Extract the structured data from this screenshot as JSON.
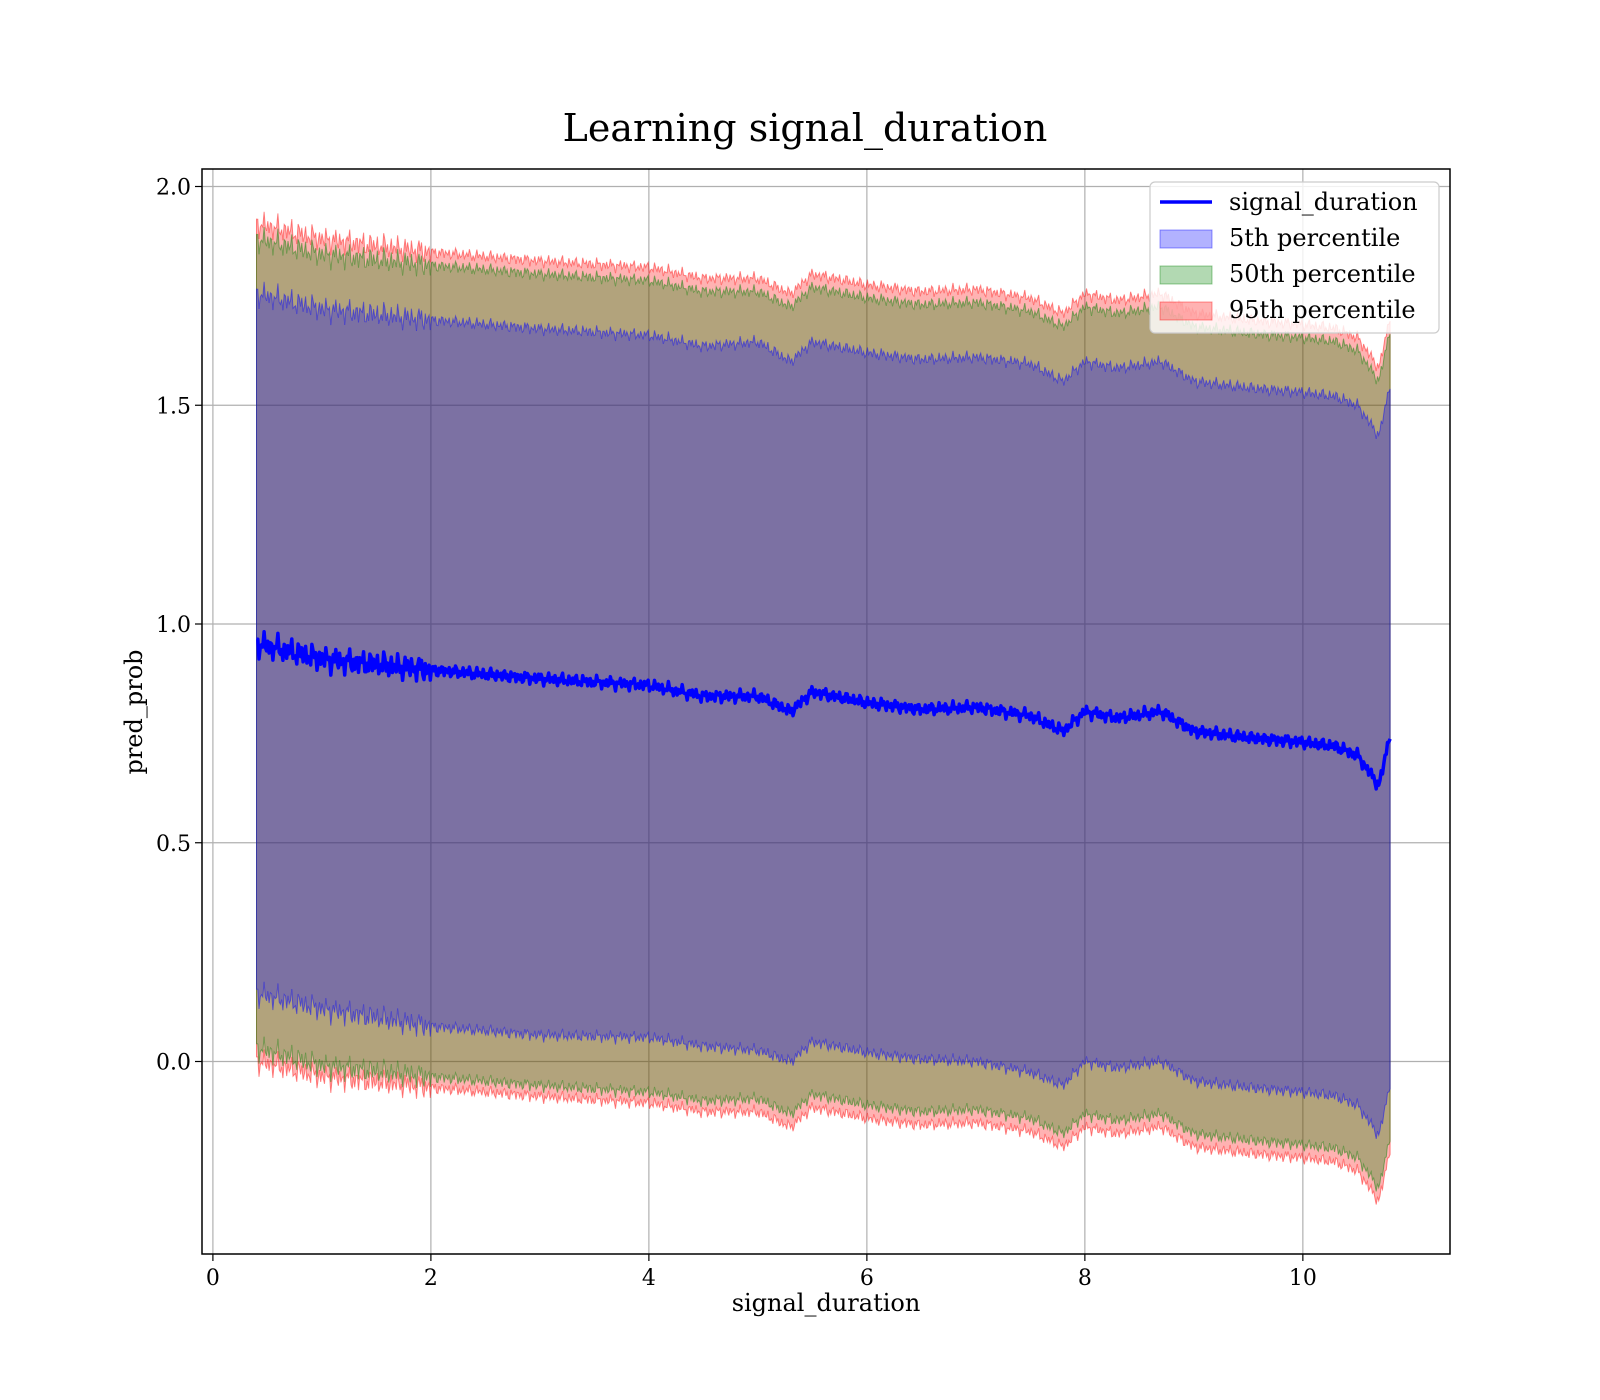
{
  "chart_data": {
    "type": "area",
    "title": "Learning signal_duration",
    "xlabel": "signal_duration",
    "ylabel": "pred_prob",
    "xlim": [
      -0.1,
      11.35
    ],
    "ylim": [
      -0.44,
      2.04
    ],
    "xticks": [
      0,
      2,
      4,
      6,
      8,
      10
    ],
    "yticks": [
      0.0,
      0.5,
      1.0,
      1.5,
      2.0
    ],
    "xtick_labels": [
      "0",
      "2",
      "4",
      "6",
      "8",
      "10"
    ],
    "ytick_labels": [
      "0.0",
      "0.5",
      "1.0",
      "1.5",
      "2.0"
    ],
    "grid": true,
    "legend_position": "top-right",
    "legend": [
      {
        "label": "signal_duration",
        "kind": "line",
        "color": "#0000ff"
      },
      {
        "label": "5th percentile",
        "kind": "patch",
        "color": "#0000ff"
      },
      {
        "label": "50th percentile",
        "kind": "patch",
        "color": "#008000"
      },
      {
        "label": "95th percentile",
        "kind": "patch",
        "color": "#ff0000"
      }
    ],
    "x": [
      0.4,
      1.0,
      2.0,
      3.0,
      4.0,
      4.5,
      5.0,
      5.3,
      5.5,
      6.0,
      6.5,
      7.0,
      7.5,
      7.8,
      8.0,
      8.3,
      8.7,
      9.0,
      9.5,
      10.0,
      10.3,
      10.5,
      10.7,
      10.8
    ],
    "series": [
      {
        "name": "signal_duration",
        "kind": "line",
        "color": "#0000ff",
        "values": [
          0.955,
          0.92,
          0.895,
          0.875,
          0.86,
          0.835,
          0.835,
          0.8,
          0.845,
          0.82,
          0.805,
          0.81,
          0.79,
          0.755,
          0.8,
          0.785,
          0.8,
          0.755,
          0.74,
          0.73,
          0.72,
          0.7,
          0.63,
          0.75
        ]
      },
      {
        "name": "5th percentile",
        "kind": "band",
        "color": "#0000ff",
        "lower": [
          0.155,
          0.12,
          0.08,
          0.06,
          0.055,
          0.035,
          0.025,
          0.0,
          0.045,
          0.02,
          0.005,
          0.0,
          -0.025,
          -0.055,
          0.0,
          -0.015,
          0.0,
          -0.045,
          -0.06,
          -0.07,
          -0.08,
          -0.1,
          -0.17,
          -0.05
        ],
        "upper": [
          1.755,
          1.72,
          1.695,
          1.675,
          1.66,
          1.635,
          1.645,
          1.6,
          1.645,
          1.62,
          1.605,
          1.61,
          1.595,
          1.555,
          1.6,
          1.585,
          1.6,
          1.555,
          1.54,
          1.53,
          1.52,
          1.5,
          1.43,
          1.55
        ]
      },
      {
        "name": "50th percentile",
        "kind": "band",
        "color": "#008000",
        "lower": [
          0.03,
          -0.01,
          -0.035,
          -0.055,
          -0.07,
          -0.09,
          -0.085,
          -0.12,
          -0.075,
          -0.1,
          -0.115,
          -0.11,
          -0.13,
          -0.165,
          -0.12,
          -0.135,
          -0.12,
          -0.165,
          -0.18,
          -0.19,
          -0.2,
          -0.22,
          -0.29,
          -0.17
        ],
        "upper": [
          1.88,
          1.845,
          1.82,
          1.8,
          1.785,
          1.76,
          1.76,
          1.725,
          1.77,
          1.745,
          1.73,
          1.735,
          1.715,
          1.68,
          1.725,
          1.71,
          1.725,
          1.68,
          1.665,
          1.655,
          1.645,
          1.625,
          1.555,
          1.675
        ]
      },
      {
        "name": "95th percentile",
        "kind": "band",
        "color": "#ff0000",
        "lower": [
          0.0,
          -0.035,
          -0.06,
          -0.08,
          -0.095,
          -0.115,
          -0.115,
          -0.15,
          -0.105,
          -0.13,
          -0.145,
          -0.14,
          -0.16,
          -0.195,
          -0.15,
          -0.165,
          -0.15,
          -0.195,
          -0.21,
          -0.22,
          -0.23,
          -0.25,
          -0.32,
          -0.2
        ],
        "upper": [
          1.915,
          1.88,
          1.85,
          1.83,
          1.815,
          1.79,
          1.79,
          1.755,
          1.8,
          1.775,
          1.76,
          1.765,
          1.745,
          1.71,
          1.755,
          1.74,
          1.755,
          1.71,
          1.695,
          1.685,
          1.675,
          1.655,
          1.585,
          1.705
        ]
      }
    ]
  }
}
